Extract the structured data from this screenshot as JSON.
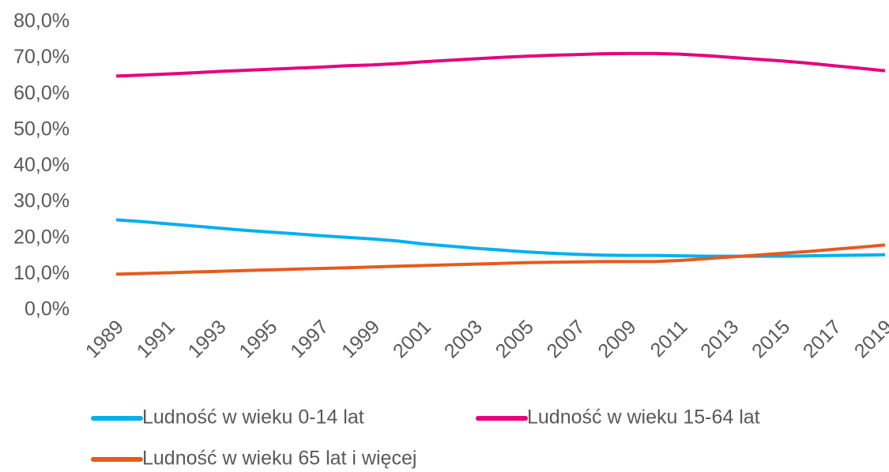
{
  "chart_data": {
    "type": "line",
    "x": [
      1989,
      1990,
      1991,
      1992,
      1993,
      1994,
      1995,
      1996,
      1997,
      1998,
      1999,
      2000,
      2001,
      2002,
      2003,
      2004,
      2005,
      2006,
      2007,
      2008,
      2009,
      2010,
      2011,
      2012,
      2013,
      2014,
      2015,
      2016,
      2017,
      2018,
      2019
    ],
    "series": [
      {
        "name": "Ludność w wieku 0-14 lat",
        "color": "#00b0f0",
        "values": [
          25.1,
          24.6,
          24.0,
          23.4,
          22.8,
          22.2,
          21.7,
          21.2,
          20.7,
          20.2,
          19.8,
          19.2,
          18.4,
          17.8,
          17.2,
          16.7,
          16.2,
          15.8,
          15.5,
          15.3,
          15.2,
          15.2,
          15.1,
          15.0,
          15.0,
          15.0,
          15.0,
          15.1,
          15.2,
          15.3,
          15.4
        ]
      },
      {
        "name": "Ludność w wieku 15-64 lat",
        "color": "#e6007e",
        "values": [
          65.0,
          65.3,
          65.6,
          65.9,
          66.3,
          66.6,
          66.9,
          67.2,
          67.5,
          67.9,
          68.1,
          68.5,
          69.0,
          69.4,
          69.8,
          70.2,
          70.5,
          70.8,
          71.0,
          71.2,
          71.3,
          71.3,
          71.1,
          70.7,
          70.2,
          69.7,
          69.2,
          68.6,
          67.9,
          67.2,
          66.5
        ]
      },
      {
        "name": "Ludność w wieku 65 lat i więcej",
        "color": "#e85a1c",
        "values": [
          10.0,
          10.2,
          10.4,
          10.6,
          10.8,
          11.0,
          11.2,
          11.4,
          11.6,
          11.8,
          12.0,
          12.2,
          12.4,
          12.6,
          12.8,
          13.0,
          13.2,
          13.3,
          13.4,
          13.5,
          13.5,
          13.5,
          13.8,
          14.3,
          14.8,
          15.3,
          15.8,
          16.3,
          16.9,
          17.5,
          18.1
        ]
      }
    ],
    "xlim": [
      1989,
      2019
    ],
    "xticks": [
      1989,
      1991,
      1993,
      1995,
      1997,
      1999,
      2001,
      2003,
      2005,
      2007,
      2009,
      2011,
      2013,
      2015,
      2017,
      2019
    ],
    "ylim": [
      0,
      80
    ],
    "yticks": [
      {
        "value": 0,
        "label": "0,0%"
      },
      {
        "value": 10,
        "label": "10,0%"
      },
      {
        "value": 20,
        "label": "20,0%"
      },
      {
        "value": 30,
        "label": "30,0%"
      },
      {
        "value": 40,
        "label": "40,0%"
      },
      {
        "value": 50,
        "label": "50,0%"
      },
      {
        "value": 60,
        "label": "60,0%"
      },
      {
        "value": 70,
        "label": "70,0%"
      },
      {
        "value": 80,
        "label": "80,0%"
      }
    ],
    "grid": false,
    "legend": "bottom"
  }
}
